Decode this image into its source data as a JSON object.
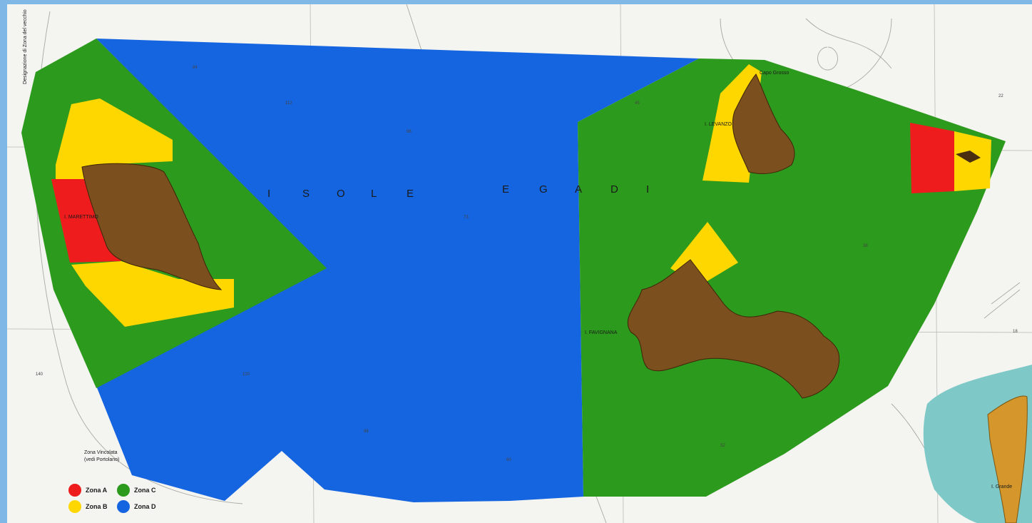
{
  "map": {
    "title_letters": [
      "I",
      "S",
      "O",
      "L",
      "E",
      "E",
      "G",
      "A",
      "D",
      "I"
    ],
    "islands": {
      "marettimo": "I. MARETTIMO",
      "levanzo": "I. LEVANZO",
      "favignana": "I. FAVIGNANA",
      "grande": "I. Grande"
    },
    "places": {
      "capo_grosso": "Capo Grosso",
      "zona_vincolata": "Zona Vincolata",
      "zona_vincolata_2": "(vedi Portolano)",
      "side_note": "Designazione di Zona del vecchio"
    },
    "colors": {
      "zona_a": "#ee1c1c",
      "zona_b": "#ffd700",
      "zona_c": "#2c9a1c",
      "zona_d": "#1565e0",
      "land": "#7b4f1e",
      "land_mainland": "#d5962b",
      "shallow": "#7ec9c7",
      "paper": "#f4f4f1"
    }
  },
  "legend": {
    "items": [
      {
        "label": "Zona A",
        "color": "#ee1c1c"
      },
      {
        "label": "Zona C",
        "color": "#2c9a1c"
      },
      {
        "label": "Zona B",
        "color": "#ffd700"
      },
      {
        "label": "Zona D",
        "color": "#1565e0"
      }
    ]
  }
}
